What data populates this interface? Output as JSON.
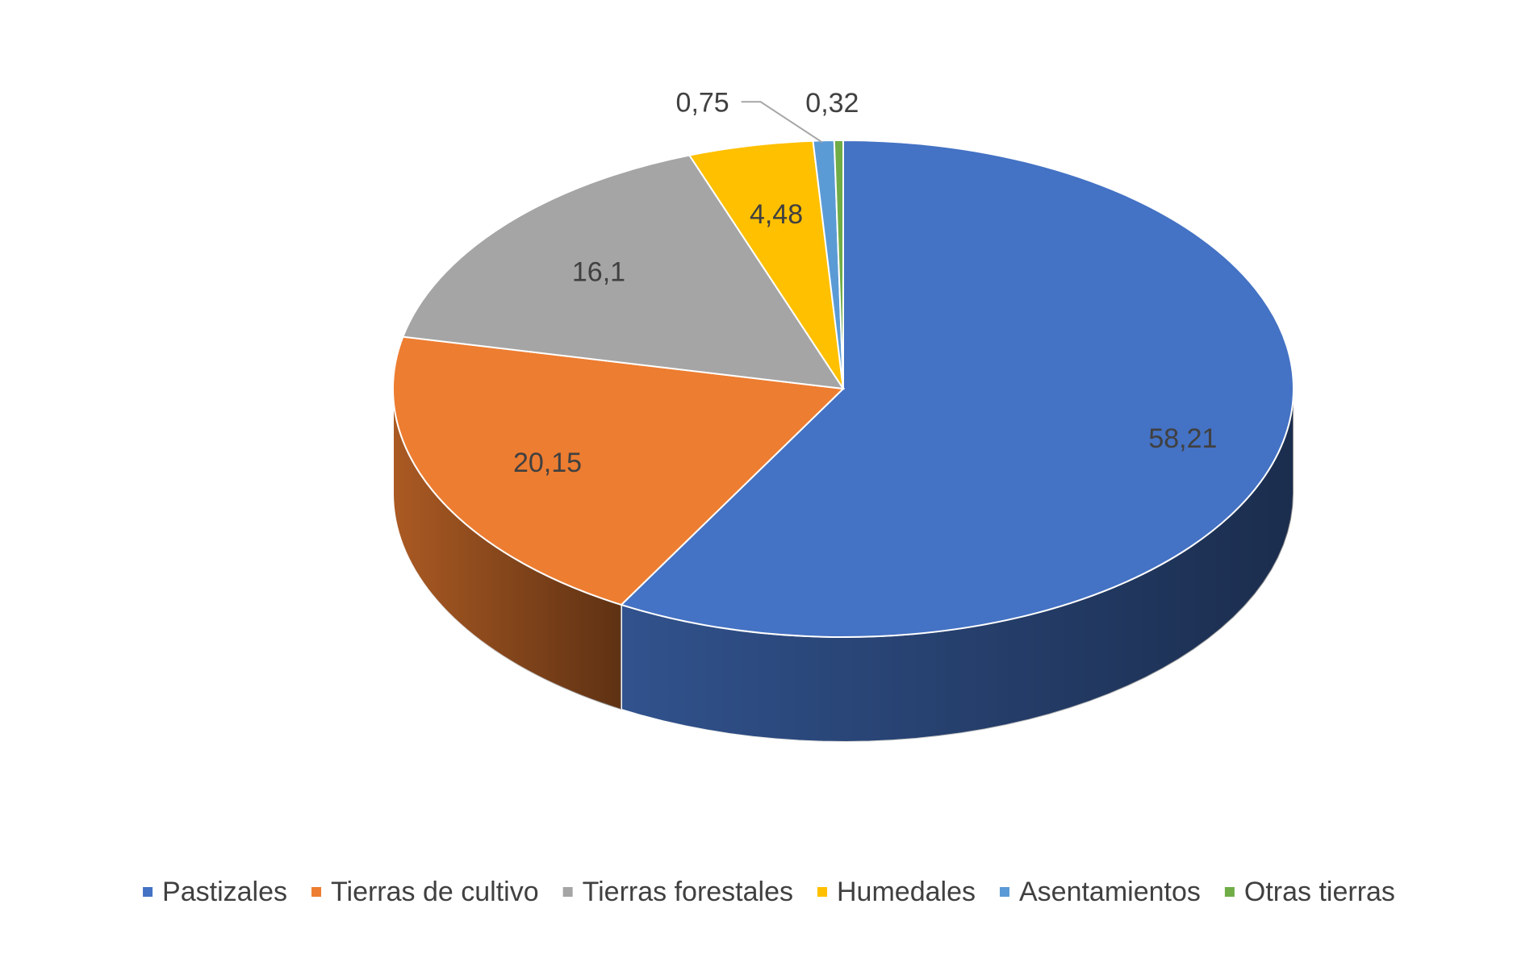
{
  "chart_data": {
    "type": "pie",
    "style": "3d",
    "categories": [
      "Pastizales",
      "Tierras de cultivo",
      "Tierras forestales",
      "Humedales",
      "Asentamientos",
      "Otras tierras"
    ],
    "values": [
      58.21,
      20.15,
      16.1,
      4.48,
      0.75,
      0.32
    ],
    "value_labels": [
      "58,21",
      "20,15",
      "16,1",
      "4,48",
      "0,75",
      "0,32"
    ],
    "colors": [
      "#4472C4",
      "#ED7D31",
      "#A5A5A5",
      "#FFC000",
      "#5B9BD5",
      "#70AD47"
    ],
    "legend_position": "bottom"
  }
}
